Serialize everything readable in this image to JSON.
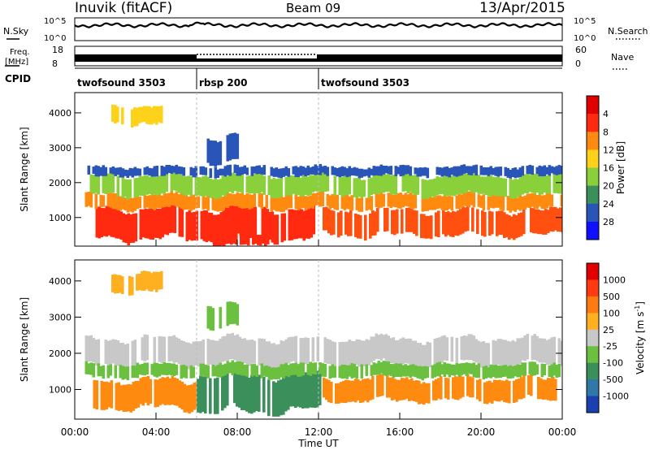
{
  "header": {
    "station": "Inuvik (fitACF)",
    "beam": "Beam 09",
    "date": "13/Apr/2015"
  },
  "left_labels": {
    "nsky": "N.Sky",
    "freq_line1": "Freq.",
    "freq_line2": "[MHz]",
    "cpid": "CPID"
  },
  "right_labels": {
    "nsearch": "N.Search",
    "nave": "Nave"
  },
  "strip_ticks": {
    "nsky_left": [
      "10^5",
      "10^0"
    ],
    "nsearch_right": [
      "10^5",
      "10^0"
    ],
    "freq_left": [
      "18",
      "8"
    ],
    "nave_right": [
      "60",
      "0"
    ]
  },
  "cpid_segments": [
    {
      "label": "twofsound 3503",
      "start_h": 0,
      "end_h": 6
    },
    {
      "label": "rbsp 200",
      "start_h": 6,
      "end_h": 12
    },
    {
      "label": "twofsound 3503",
      "start_h": 12,
      "end_h": 24
    }
  ],
  "chart_data": [
    {
      "type": "heatmap",
      "name": "power",
      "ylabel": "Slant Range [km]",
      "xlabel": "",
      "x_ticks": [
        "00:00",
        "04:00",
        "08:00",
        "12:00",
        "16:00",
        "20:00",
        "00:00"
      ],
      "x_tick_hours": [
        0,
        4,
        8,
        12,
        16,
        20,
        24
      ],
      "xlim_hours": [
        0,
        24
      ],
      "y_ticks": [
        1000,
        2000,
        3000,
        4000
      ],
      "ylim_km": [
        180,
        4580
      ],
      "colorbar": {
        "label": "Power [dB]",
        "ticks": [
          "4",
          "8",
          "12",
          "16",
          "20",
          "24",
          "28"
        ],
        "colors": [
          "#1010ff",
          "#2a55b8",
          "#3b8f5a",
          "#8ad03a",
          "#ffd21a",
          "#ff8a10",
          "#ff2a10",
          "#e00000"
        ]
      },
      "bands": [
        {
          "t0": 0.9,
          "t1": 11.8,
          "r0": 400,
          "r1": 1250,
          "color": "#ff2a10"
        },
        {
          "t0": 12.2,
          "t1": 24,
          "r0": 500,
          "r1": 1200,
          "color": "#ff5010"
        },
        {
          "t0": 0.5,
          "t1": 24,
          "r0": 1250,
          "r1": 1650,
          "color": "#ff8a10"
        },
        {
          "t0": 0.5,
          "t1": 24,
          "r0": 1650,
          "r1": 2200,
          "color": "#8ad03a"
        },
        {
          "t0": 0.5,
          "t1": 24,
          "r0": 2200,
          "r1": 2450,
          "color": "#2a55b8"
        },
        {
          "t0": 1.8,
          "t1": 4.3,
          "r0": 3700,
          "r1": 4200,
          "color": "#ffd21a"
        },
        {
          "t0": 6.5,
          "t1": 8.0,
          "r0": 2600,
          "r1": 3300,
          "color": "#2a55b8"
        },
        {
          "t0": 6.8,
          "t1": 9.5,
          "r0": 200,
          "r1": 500,
          "color": "#ff2a10"
        }
      ]
    },
    {
      "type": "heatmap",
      "name": "velocity",
      "ylabel": "Slant Range [km]",
      "xlabel": "Time UT",
      "x_ticks": [
        "00:00",
        "04:00",
        "08:00",
        "12:00",
        "16:00",
        "20:00",
        "00:00"
      ],
      "x_tick_hours": [
        0,
        4,
        8,
        12,
        16,
        20,
        24
      ],
      "xlim_hours": [
        0,
        24
      ],
      "y_ticks": [
        1000,
        2000,
        3000,
        4000
      ],
      "ylim_km": [
        180,
        4580
      ],
      "colorbar": {
        "label": "Velocity [m s^-1]",
        "ticks": [
          "1000",
          "500",
          "100",
          "25",
          "-25",
          "-100",
          "-500",
          "-1000"
        ],
        "colors": [
          "#1a3fb0",
          "#2f78a8",
          "#3b8f5a",
          "#6cc040",
          "#c8c8c8",
          "#ffb020",
          "#ff7a10",
          "#ff3a10",
          "#e00000"
        ]
      },
      "bands": [
        {
          "t0": 0.9,
          "t1": 6.0,
          "r0": 500,
          "r1": 1250,
          "color": "#ff8a10"
        },
        {
          "t0": 6.0,
          "t1": 12.0,
          "r0": 400,
          "r1": 1400,
          "color": "#3b8f5a"
        },
        {
          "t0": 12.2,
          "t1": 24,
          "r0": 700,
          "r1": 1300,
          "color": "#ff8a10"
        },
        {
          "t0": 0.5,
          "t1": 24,
          "r0": 1700,
          "r1": 2400,
          "color": "#c8c8c8"
        },
        {
          "t0": 0.5,
          "t1": 24,
          "r0": 1350,
          "r1": 1700,
          "color": "#6cc040"
        },
        {
          "t0": 1.8,
          "t1": 4.3,
          "r0": 3700,
          "r1": 4200,
          "color": "#ffb020"
        },
        {
          "t0": 6.5,
          "t1": 8.0,
          "r0": 2700,
          "r1": 3300,
          "color": "#6cc040"
        }
      ]
    }
  ]
}
